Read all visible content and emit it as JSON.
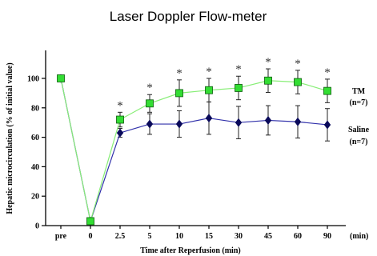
{
  "chart_data": {
    "type": "line",
    "title": "Laser Doppler Flow-meter",
    "xlabel": "Time after Reperfusion (min)",
    "ylabel": "Hepatic microcirculation (% of initial value)",
    "x_unit_label": "(min)",
    "categories": [
      "pre",
      "0",
      "2.5",
      "5",
      "10",
      "15",
      "30",
      "45",
      "60",
      "90"
    ],
    "yticks": [
      0,
      20,
      40,
      60,
      80,
      100
    ],
    "ylim": [
      0,
      120
    ],
    "grid": false,
    "legend_placement": "right",
    "series": [
      {
        "name": "TM",
        "legend_sub": "(n=7)",
        "marker": "square",
        "color": "#33dd33",
        "line_color": "#88ee77",
        "values": [
          100,
          3,
          72,
          83,
          90,
          92,
          93.5,
          98.5,
          97.5,
          91.5
        ],
        "errors": [
          0,
          0,
          5,
          6,
          9,
          8,
          8,
          8,
          8,
          8
        ],
        "significant": [
          false,
          false,
          true,
          true,
          true,
          true,
          true,
          true,
          true,
          true
        ]
      },
      {
        "name": "Saline",
        "legend_sub": "(n=7)",
        "marker": "diamond",
        "color": "#0a0a5a",
        "line_color": "#3030aa",
        "values": [
          100,
          3,
          63,
          69,
          69,
          73,
          70,
          71.5,
          70.5,
          68.5
        ],
        "errors": [
          0,
          0,
          3,
          7,
          9,
          11,
          11,
          10,
          11,
          11
        ],
        "significant": [
          false,
          false,
          false,
          false,
          false,
          false,
          false,
          false,
          false,
          false
        ]
      }
    ],
    "significance_symbol": "*"
  }
}
